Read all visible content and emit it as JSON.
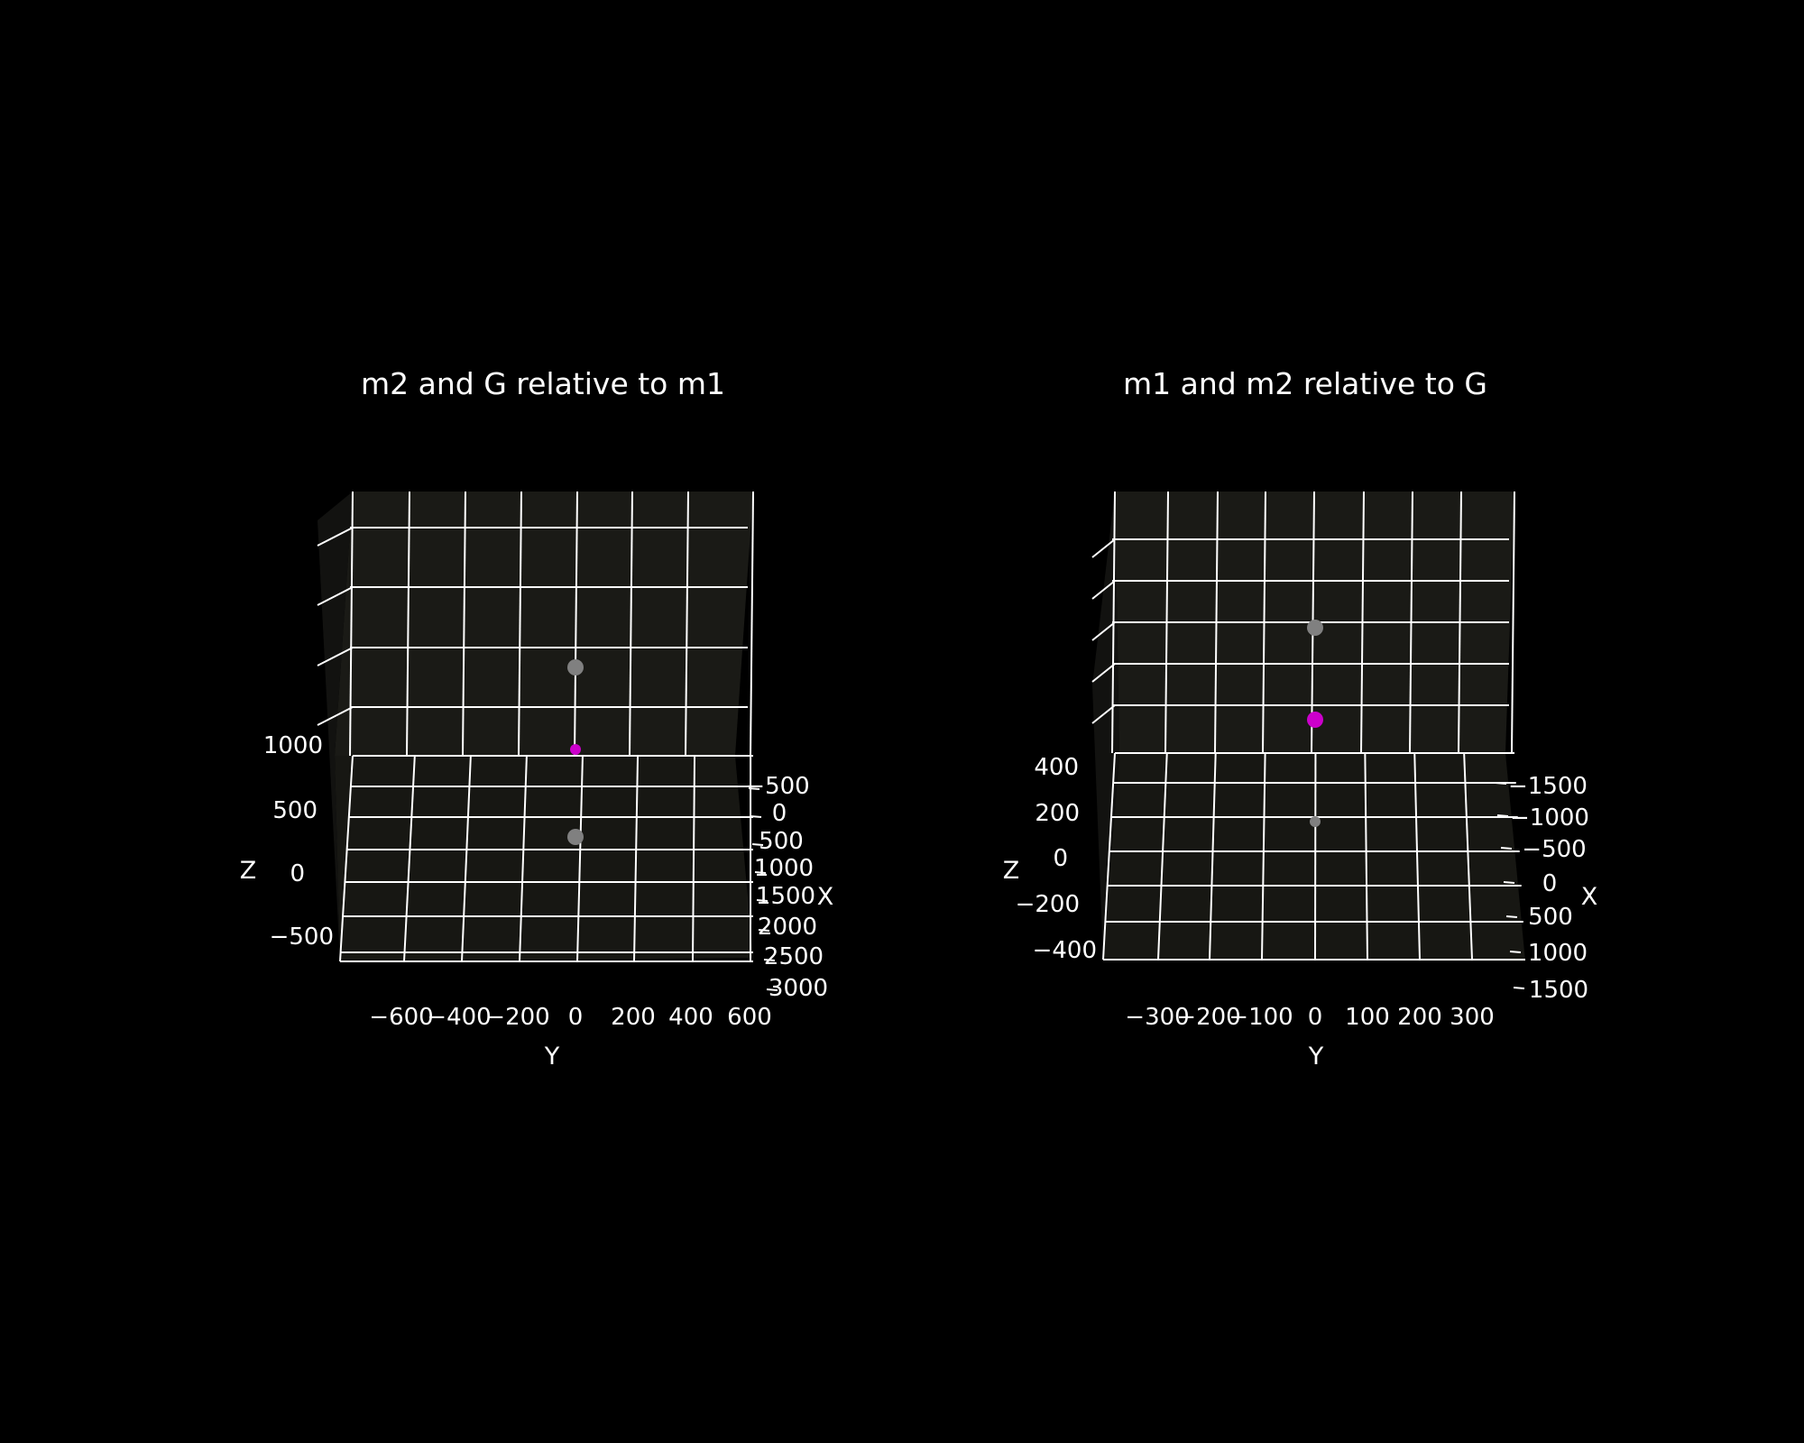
{
  "figure": {
    "background": "#000000",
    "pane_color": "#1a1a16",
    "grid_color": "#ffffff",
    "text_color": "#ffffff"
  },
  "chart_data": [
    {
      "type": "scatter",
      "title": "m2 and G relative to m1",
      "xlabel": "X",
      "ylabel": "Y",
      "zlabel": "Z",
      "xlim": [
        -500,
        3000
      ],
      "ylim": [
        -700,
        650
      ],
      "zlim": [
        -750,
        1500
      ],
      "x_ticks": [
        "−500",
        "0",
        "500",
        "1000",
        "1500",
        "2000",
        "2500",
        "3000"
      ],
      "y_ticks": [
        "−600",
        "−400",
        "−200",
        "0",
        "200",
        "400",
        "600"
      ],
      "z_ticks": [
        "−500",
        "0",
        "500",
        "1000"
      ],
      "grid": true,
      "points": [
        {
          "x": 0,
          "y": 0,
          "z": 1000,
          "color": "#808080",
          "size": "large"
        },
        {
          "x": 0,
          "y": 0,
          "z": 0,
          "color": "#cc00cc",
          "size": "small"
        },
        {
          "x": 0,
          "y": 0,
          "z": -550,
          "color": "#808080",
          "size": "large"
        }
      ]
    },
    {
      "type": "scatter",
      "title": "m1 and m2 relative to G",
      "xlabel": "X",
      "ylabel": "Y",
      "zlabel": "Z",
      "xlim": [
        -1500,
        1500
      ],
      "ylim": [
        -380,
        380
      ],
      "zlim": [
        -450,
        1000
      ],
      "x_ticks": [
        "−1500",
        "−1000",
        "−500",
        "0",
        "500",
        "1000",
        "1500"
      ],
      "y_ticks": [
        "−300",
        "−200",
        "−100",
        "0",
        "100",
        "200",
        "300"
      ],
      "z_ticks": [
        "−400",
        "−200",
        "0",
        "200",
        "400"
      ],
      "grid": true,
      "points": [
        {
          "x": 0,
          "y": 0,
          "z": 700,
          "color": "#808080",
          "size": "large"
        },
        {
          "x": 0,
          "y": 0,
          "z": 400,
          "color": "#cc00cc",
          "size": "large"
        },
        {
          "x": 0,
          "y": 0,
          "z": 0,
          "color": "#808080",
          "size": "small"
        }
      ]
    }
  ]
}
